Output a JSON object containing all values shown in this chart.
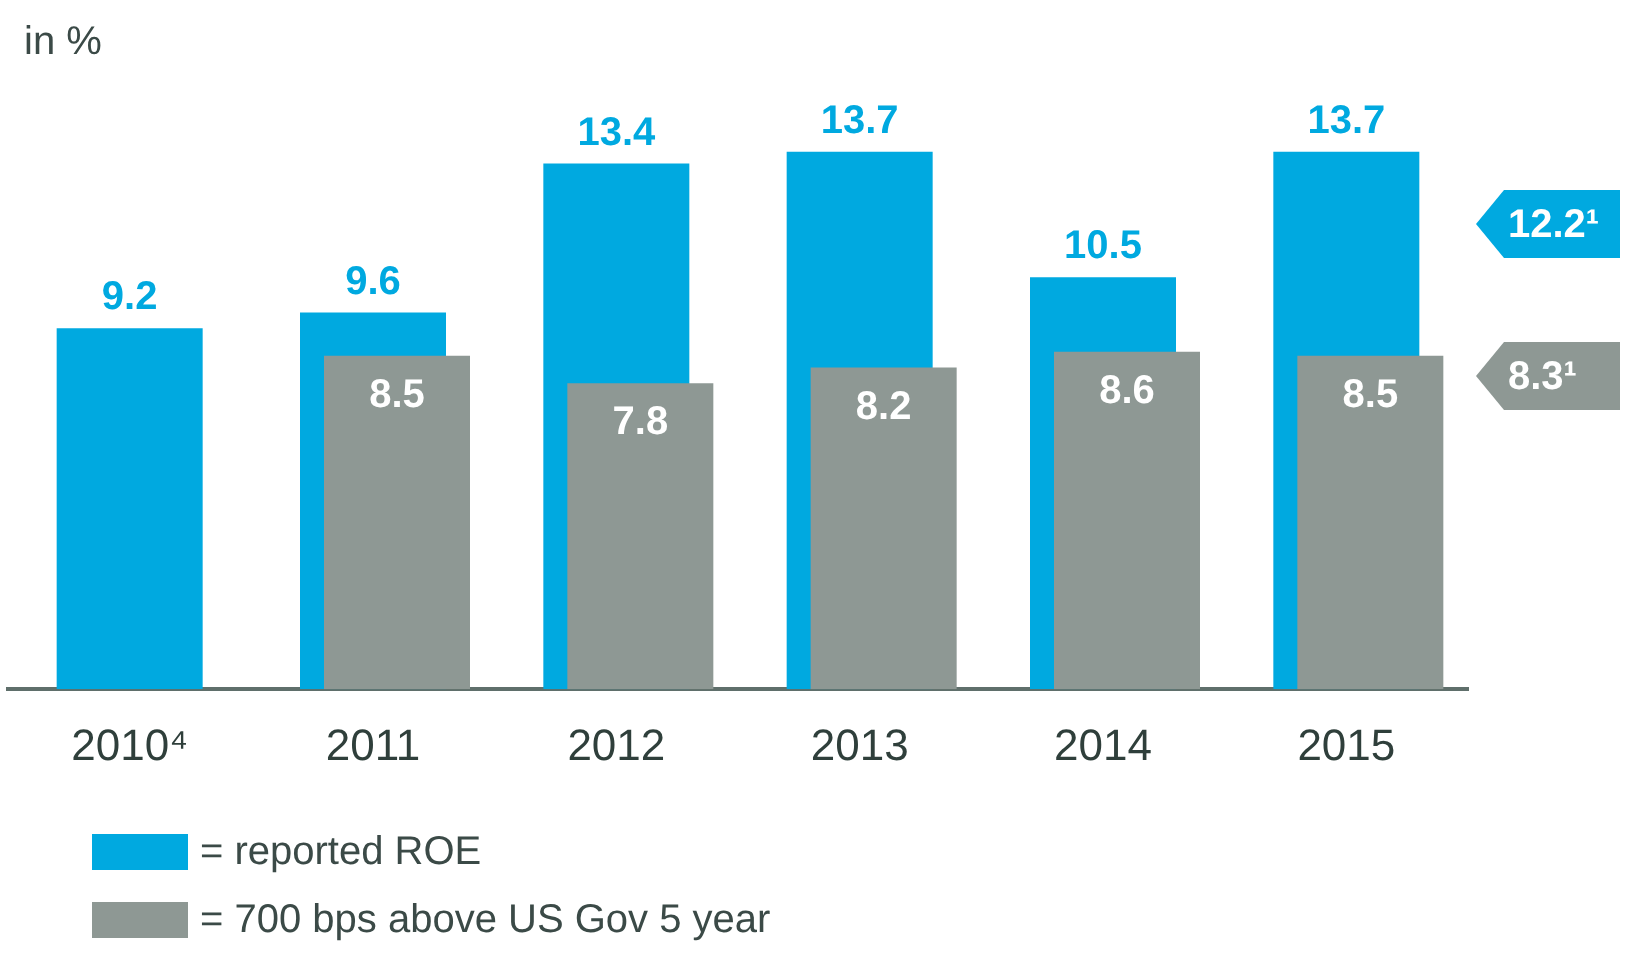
{
  "chart_data": {
    "type": "bar",
    "ylabel": "in %",
    "categories": [
      "2010⁴",
      "2011",
      "2012",
      "2013",
      "2014",
      "2015"
    ],
    "series": [
      {
        "name": "= reported ROE",
        "color": "#00a9e0",
        "values": [
          9.2,
          9.6,
          13.4,
          13.7,
          10.5,
          13.7
        ]
      },
      {
        "name": "= 700 bps above US Gov 5 year",
        "color": "#8e9894",
        "values": [
          null,
          8.5,
          7.8,
          8.2,
          8.6,
          8.5
        ]
      }
    ],
    "data_labels": true,
    "legend": "bottom",
    "grid": false,
    "annotations": [
      "12.2¹",
      "8.3¹"
    ]
  }
}
